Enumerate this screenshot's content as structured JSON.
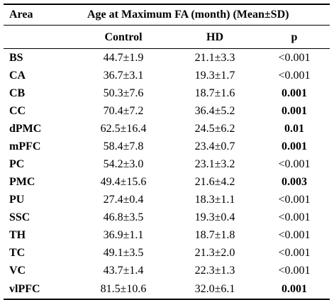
{
  "table": {
    "header_area": "Area",
    "header_title": "Age at Maximum FA (month) (Mean±SD)",
    "sub_control": "Control",
    "sub_hd": "HD",
    "sub_p": "p",
    "rows": [
      {
        "area": "BS",
        "control": "44.7±1.9",
        "hd": "21.1±3.3",
        "p": "<0.001",
        "p_bold": false
      },
      {
        "area": "CA",
        "control": "36.7±3.1",
        "hd": "19.3±1.7",
        "p": "<0.001",
        "p_bold": false
      },
      {
        "area": "CB",
        "control": "50.3±7.6",
        "hd": "18.7±1.6",
        "p": "0.001",
        "p_bold": true
      },
      {
        "area": "CC",
        "control": "70.4±7.2",
        "hd": "36.4±5.2",
        "p": "0.001",
        "p_bold": true
      },
      {
        "area": "dPMC",
        "control": "62.5±16.4",
        "hd": "24.5±6.2",
        "p": "0.01",
        "p_bold": true
      },
      {
        "area": "mPFC",
        "control": "58.4±7.8",
        "hd": "23.4±0.7",
        "p": "0.001",
        "p_bold": true
      },
      {
        "area": "PC",
        "control": "54.2±3.0",
        "hd": "23.1±3.2",
        "p": "<0.001",
        "p_bold": false
      },
      {
        "area": "PMC",
        "control": "49.4±15.6",
        "hd": "21.6±4.2",
        "p": "0.003",
        "p_bold": true
      },
      {
        "area": "PU",
        "control": "27.4±0.4",
        "hd": "18.3±1.1",
        "p": "<0.001",
        "p_bold": false
      },
      {
        "area": "SSC",
        "control": "46.8±3.5",
        "hd": "19.3±0.4",
        "p": "<0.001",
        "p_bold": false
      },
      {
        "area": "TH",
        "control": "36.9±1.1",
        "hd": "18.7±1.8",
        "p": "<0.001",
        "p_bold": false
      },
      {
        "area": "TC",
        "control": "49.1±3.5",
        "hd": "21.3±2.0",
        "p": "<0.001",
        "p_bold": false
      },
      {
        "area": "VC",
        "control": "43.7±1.4",
        "hd": "22.3±1.3",
        "p": "<0.001",
        "p_bold": false
      },
      {
        "area": "vlPFC",
        "control": "81.5±10.6",
        "hd": "32.0±6.1",
        "p": "0.001",
        "p_bold": true
      }
    ]
  }
}
